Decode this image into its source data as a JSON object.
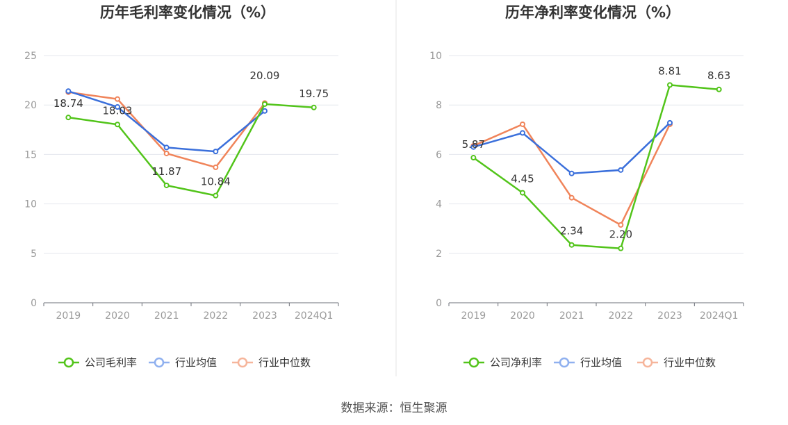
{
  "chart_data": [
    {
      "type": "line",
      "title": "历年毛利率变化情况（%）",
      "categories": [
        "2019",
        "2020",
        "2021",
        "2022",
        "2023",
        "2024Q1"
      ],
      "ylim": [
        0,
        25
      ],
      "yticks": [
        0,
        5,
        10,
        15,
        20,
        25
      ],
      "grid": true,
      "legend_position": "bottom",
      "series": [
        {
          "name": "公司毛利率",
          "color": "#52c41a",
          "values": [
            18.74,
            18.03,
            11.87,
            10.84,
            20.09,
            19.75
          ],
          "labels": [
            "18.74",
            "18.03",
            "11.87",
            "10.84",
            "20.09",
            "19.75"
          ]
        },
        {
          "name": "行业均值",
          "color": "#3a6fdb",
          "values": [
            21.4,
            19.8,
            15.7,
            15.3,
            19.4,
            null
          ]
        },
        {
          "name": "行业中位数",
          "color": "#f0845a",
          "values": [
            21.3,
            20.6,
            15.1,
            13.7,
            20.2,
            null
          ]
        }
      ]
    },
    {
      "type": "line",
      "title": "历年净利率变化情况（%）",
      "categories": [
        "2019",
        "2020",
        "2021",
        "2022",
        "2023",
        "2024Q1"
      ],
      "ylim": [
        0,
        10
      ],
      "yticks": [
        0,
        2,
        4,
        6,
        8,
        10
      ],
      "grid": true,
      "legend_position": "bottom",
      "series": [
        {
          "name": "公司净利率",
          "color": "#52c41a",
          "values": [
            5.87,
            4.45,
            2.34,
            2.2,
            8.81,
            8.63
          ],
          "labels": [
            "5.87",
            "4.45",
            "2.34",
            "2.20",
            "8.81",
            "8.63"
          ]
        },
        {
          "name": "行业均值",
          "color": "#3a6fdb",
          "values": [
            6.3,
            6.87,
            5.23,
            5.37,
            7.28,
            null
          ]
        },
        {
          "name": "行业中位数",
          "color": "#f0845a",
          "values": [
            6.35,
            7.22,
            4.25,
            3.15,
            7.22,
            null
          ]
        }
      ]
    }
  ],
  "source": "数据来源：恒生聚源"
}
